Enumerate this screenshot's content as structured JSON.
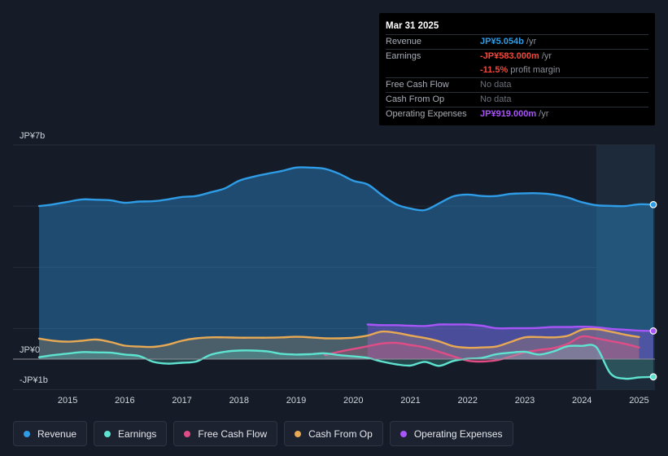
{
  "tooltip": {
    "date": "Mar 31 2025",
    "rows": [
      {
        "label": "Revenue",
        "value": "JP¥5.054b",
        "unit": " /yr"
      },
      {
        "label": "Earnings",
        "value": "-JP¥583.000m",
        "unit": " /yr"
      },
      {
        "label": "",
        "value": "-11.5%",
        "unit": " profit margin"
      },
      {
        "label": "Free Cash Flow",
        "value": "No data",
        "unit": ""
      },
      {
        "label": "Cash From Op",
        "value": "No data",
        "unit": ""
      },
      {
        "label": "Operating Expenses",
        "value": "JP¥919.000m",
        "unit": " /yr"
      }
    ]
  },
  "legend": [
    {
      "label": "Revenue",
      "color": "#2e9ce6"
    },
    {
      "label": "Earnings",
      "color": "#5ee3d0"
    },
    {
      "label": "Free Cash Flow",
      "color": "#e04d86"
    },
    {
      "label": "Cash From Op",
      "color": "#e8a955"
    },
    {
      "label": "Operating Expenses",
      "color": "#a855f7"
    }
  ],
  "chart_data": {
    "type": "area",
    "y_unit": "JPY billions",
    "ylim": [
      -1,
      7
    ],
    "y_tick_labels": [
      {
        "value": 7,
        "label": "JP¥7b"
      },
      {
        "value": 0,
        "label": "JP¥0"
      },
      {
        "value": -1,
        "label": "-JP¥1b"
      }
    ],
    "x_ticks": [
      2015,
      2016,
      2017,
      2018,
      2019,
      2020,
      2021,
      2022,
      2023,
      2024,
      2025
    ],
    "x_range": [
      2014.5,
      2025.25
    ],
    "highlight_from": 2024.25,
    "series": [
      {
        "name": "Revenue",
        "color": "#2e9ce6",
        "area": true,
        "end_marker": true,
        "points": [
          [
            2014.5,
            5.0
          ],
          [
            2014.75,
            5.06
          ],
          [
            2015.0,
            5.14
          ],
          [
            2015.25,
            5.22
          ],
          [
            2015.5,
            5.21
          ],
          [
            2015.75,
            5.19
          ],
          [
            2016.0,
            5.11
          ],
          [
            2016.25,
            5.15
          ],
          [
            2016.5,
            5.16
          ],
          [
            2016.75,
            5.22
          ],
          [
            2017.0,
            5.3
          ],
          [
            2017.25,
            5.33
          ],
          [
            2017.5,
            5.45
          ],
          [
            2017.75,
            5.58
          ],
          [
            2018.0,
            5.83
          ],
          [
            2018.25,
            5.96
          ],
          [
            2018.5,
            6.06
          ],
          [
            2018.75,
            6.15
          ],
          [
            2019.0,
            6.26
          ],
          [
            2019.25,
            6.26
          ],
          [
            2019.5,
            6.22
          ],
          [
            2019.75,
            6.06
          ],
          [
            2020.0,
            5.83
          ],
          [
            2020.25,
            5.71
          ],
          [
            2020.5,
            5.36
          ],
          [
            2020.75,
            5.06
          ],
          [
            2021.0,
            4.92
          ],
          [
            2021.25,
            4.87
          ],
          [
            2021.5,
            5.09
          ],
          [
            2021.75,
            5.32
          ],
          [
            2022.0,
            5.38
          ],
          [
            2022.25,
            5.33
          ],
          [
            2022.5,
            5.33
          ],
          [
            2022.75,
            5.4
          ],
          [
            2023.0,
            5.42
          ],
          [
            2023.25,
            5.42
          ],
          [
            2023.5,
            5.38
          ],
          [
            2023.75,
            5.28
          ],
          [
            2024.0,
            5.13
          ],
          [
            2024.25,
            5.03
          ],
          [
            2024.5,
            5.01
          ],
          [
            2024.75,
            5.0
          ],
          [
            2025.0,
            5.06
          ],
          [
            2025.25,
            5.05
          ]
        ]
      },
      {
        "name": "Operating Expenses",
        "color": "#a855f7",
        "area": true,
        "end_marker": true,
        "points": [
          [
            2020.25,
            1.13
          ],
          [
            2020.5,
            1.11
          ],
          [
            2020.75,
            1.11
          ],
          [
            2021.0,
            1.09
          ],
          [
            2021.25,
            1.08
          ],
          [
            2021.5,
            1.13
          ],
          [
            2021.75,
            1.13
          ],
          [
            2022.0,
            1.13
          ],
          [
            2022.25,
            1.09
          ],
          [
            2022.5,
            1.01
          ],
          [
            2022.75,
            1.01
          ],
          [
            2023.0,
            1.01
          ],
          [
            2023.25,
            1.02
          ],
          [
            2023.5,
            1.05
          ],
          [
            2023.75,
            1.05
          ],
          [
            2024.0,
            1.06
          ],
          [
            2024.25,
            1.04
          ],
          [
            2024.5,
            0.99
          ],
          [
            2024.75,
            0.96
          ],
          [
            2025.0,
            0.93
          ],
          [
            2025.25,
            0.92
          ]
        ]
      },
      {
        "name": "Cash From Op",
        "color": "#e8a955",
        "area": true,
        "end_marker": false,
        "points": [
          [
            2014.5,
            0.67
          ],
          [
            2014.75,
            0.6
          ],
          [
            2015.0,
            0.57
          ],
          [
            2015.25,
            0.6
          ],
          [
            2015.5,
            0.64
          ],
          [
            2015.75,
            0.56
          ],
          [
            2016.0,
            0.44
          ],
          [
            2016.25,
            0.41
          ],
          [
            2016.5,
            0.4
          ],
          [
            2016.75,
            0.47
          ],
          [
            2017.0,
            0.6
          ],
          [
            2017.25,
            0.68
          ],
          [
            2017.5,
            0.71
          ],
          [
            2017.75,
            0.71
          ],
          [
            2018.0,
            0.7
          ],
          [
            2018.25,
            0.7
          ],
          [
            2018.5,
            0.7
          ],
          [
            2018.75,
            0.71
          ],
          [
            2019.0,
            0.73
          ],
          [
            2019.25,
            0.71
          ],
          [
            2019.5,
            0.68
          ],
          [
            2019.75,
            0.68
          ],
          [
            2020.0,
            0.7
          ],
          [
            2020.25,
            0.77
          ],
          [
            2020.5,
            0.9
          ],
          [
            2020.75,
            0.86
          ],
          [
            2021.0,
            0.77
          ],
          [
            2021.25,
            0.69
          ],
          [
            2021.5,
            0.58
          ],
          [
            2021.75,
            0.42
          ],
          [
            2022.0,
            0.37
          ],
          [
            2022.25,
            0.38
          ],
          [
            2022.5,
            0.41
          ],
          [
            2022.75,
            0.56
          ],
          [
            2023.0,
            0.71
          ],
          [
            2023.25,
            0.72
          ],
          [
            2023.5,
            0.71
          ],
          [
            2023.75,
            0.76
          ],
          [
            2024.0,
            0.96
          ],
          [
            2024.25,
            0.98
          ],
          [
            2024.5,
            0.9
          ],
          [
            2024.75,
            0.8
          ],
          [
            2025.0,
            0.72
          ]
        ]
      },
      {
        "name": "Free Cash Flow",
        "color": "#e04d86",
        "area": true,
        "end_marker": false,
        "points": [
          [
            2019.5,
            0.13
          ],
          [
            2019.75,
            0.24
          ],
          [
            2020.0,
            0.33
          ],
          [
            2020.25,
            0.42
          ],
          [
            2020.5,
            0.51
          ],
          [
            2020.75,
            0.53
          ],
          [
            2021.0,
            0.46
          ],
          [
            2021.25,
            0.38
          ],
          [
            2021.5,
            0.24
          ],
          [
            2021.75,
            0.09
          ],
          [
            2022.0,
            -0.05
          ],
          [
            2022.25,
            -0.08
          ],
          [
            2022.5,
            -0.04
          ],
          [
            2022.75,
            0.08
          ],
          [
            2023.0,
            0.22
          ],
          [
            2023.25,
            0.3
          ],
          [
            2023.5,
            0.36
          ],
          [
            2023.75,
            0.5
          ],
          [
            2024.0,
            0.74
          ],
          [
            2024.25,
            0.68
          ],
          [
            2024.5,
            0.59
          ],
          [
            2024.75,
            0.5
          ],
          [
            2025.0,
            0.38
          ]
        ]
      },
      {
        "name": "Earnings",
        "color": "#5ee3d0",
        "area": true,
        "end_marker": true,
        "points": [
          [
            2014.5,
            0.06
          ],
          [
            2014.75,
            0.13
          ],
          [
            2015.0,
            0.18
          ],
          [
            2015.25,
            0.23
          ],
          [
            2015.5,
            0.22
          ],
          [
            2015.75,
            0.21
          ],
          [
            2016.0,
            0.15
          ],
          [
            2016.25,
            0.1
          ],
          [
            2016.5,
            -0.09
          ],
          [
            2016.75,
            -0.15
          ],
          [
            2017.0,
            -0.12
          ],
          [
            2017.25,
            -0.08
          ],
          [
            2017.5,
            0.14
          ],
          [
            2017.75,
            0.24
          ],
          [
            2018.0,
            0.28
          ],
          [
            2018.25,
            0.28
          ],
          [
            2018.5,
            0.25
          ],
          [
            2018.75,
            0.17
          ],
          [
            2019.0,
            0.15
          ],
          [
            2019.25,
            0.16
          ],
          [
            2019.5,
            0.19
          ],
          [
            2019.75,
            0.13
          ],
          [
            2020.0,
            0.09
          ],
          [
            2020.25,
            0.04
          ],
          [
            2020.5,
            -0.08
          ],
          [
            2020.75,
            -0.17
          ],
          [
            2021.0,
            -0.21
          ],
          [
            2021.25,
            -0.09
          ],
          [
            2021.5,
            -0.22
          ],
          [
            2021.75,
            -0.06
          ],
          [
            2022.0,
            0.01
          ],
          [
            2022.25,
            0.04
          ],
          [
            2022.5,
            0.16
          ],
          [
            2022.75,
            0.21
          ],
          [
            2023.0,
            0.24
          ],
          [
            2023.25,
            0.15
          ],
          [
            2023.5,
            0.25
          ],
          [
            2023.75,
            0.42
          ],
          [
            2024.0,
            0.43
          ],
          [
            2024.25,
            0.39
          ],
          [
            2024.5,
            -0.47
          ],
          [
            2024.75,
            -0.64
          ],
          [
            2025.0,
            -0.6
          ],
          [
            2025.25,
            -0.58
          ]
        ]
      }
    ]
  }
}
